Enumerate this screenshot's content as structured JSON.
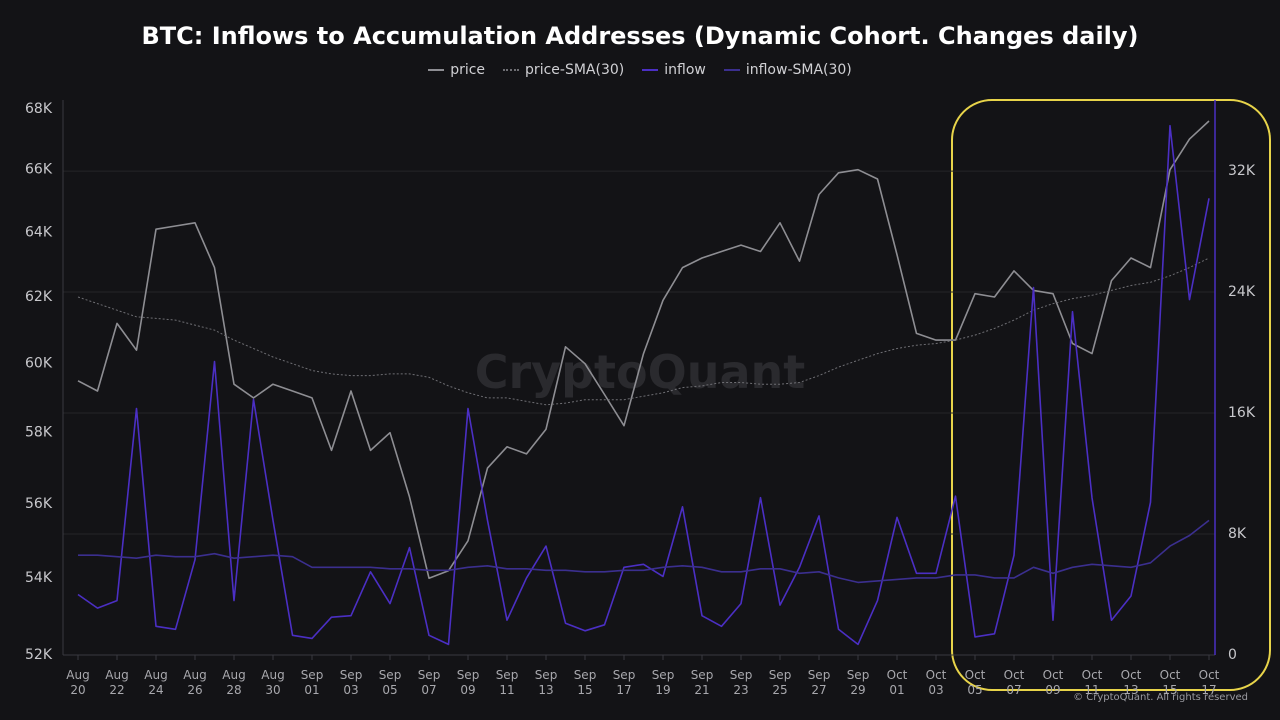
{
  "chart_data": {
    "type": "line",
    "title": "BTC: Inflows to Accumulation Addresses (Dynamic Cohort. Changes daily)",
    "watermark": "CryptoQuant",
    "copyright": "© CryptoQuant. All rights reserved",
    "categories": [
      "Aug 20",
      null,
      "Aug 22",
      null,
      "Aug 24",
      null,
      "Aug 26",
      null,
      "Aug 28",
      null,
      "Aug 30",
      null,
      "Sep 01",
      null,
      "Sep 03",
      null,
      "Sep 05",
      null,
      "Sep 07",
      null,
      "Sep 09",
      null,
      "Sep 11",
      null,
      "Sep 13",
      null,
      "Sep 15",
      null,
      "Sep 17",
      null,
      "Sep 19",
      null,
      "Sep 21",
      null,
      "Sep 23",
      null,
      "Sep 25",
      null,
      "Sep 27",
      null,
      "Sep 29",
      null,
      "Oct 01",
      null,
      "Oct 03",
      null,
      "Oct 05",
      null,
      "Oct 07",
      null,
      "Oct 09",
      null,
      "Oct 11",
      null,
      "Oct 13",
      null,
      "Oct 15",
      null,
      "Oct 17"
    ],
    "yscale": "log",
    "ylim": [
      52000,
      68300
    ],
    "yticks": [
      {
        "value": 52000,
        "label": "52K"
      },
      {
        "value": 54000,
        "label": "54K"
      },
      {
        "value": 56000,
        "label": "56K"
      },
      {
        "value": 58000,
        "label": "58K"
      },
      {
        "value": 60000,
        "label": "60K"
      },
      {
        "value": 62000,
        "label": "62K"
      },
      {
        "value": 64000,
        "label": "64K"
      },
      {
        "value": 66000,
        "label": "66K"
      },
      {
        "value": 68000,
        "label": "68K"
      }
    ],
    "y2lim": [
      0,
      36700
    ],
    "y2ticks": [
      0,
      {
        "value": 8000,
        "label": "8K"
      },
      {
        "value": 16000,
        "label": "16K"
      },
      {
        "value": 24000,
        "label": "24K"
      },
      {
        "value": 32000,
        "label": "32K"
      }
    ],
    "grid": "y2",
    "series": [
      {
        "name": "price",
        "color": "#8e8e93",
        "style": "solid",
        "axis": "y",
        "values": [
          59500,
          59200,
          61200,
          60400,
          64100,
          64200,
          64300,
          62900,
          59400,
          59000,
          59400,
          59200,
          59000,
          57500,
          59200,
          57500,
          58000,
          56200,
          54000,
          54200,
          55000,
          57000,
          57600,
          57400,
          58100,
          60500,
          60000,
          59100,
          58200,
          60300,
          61900,
          62900,
          63200,
          63400,
          63600,
          63400,
          64300,
          63100,
          65200,
          65900,
          66000,
          65700,
          63300,
          60900,
          60700,
          60700,
          62100,
          62000,
          62800,
          62200,
          62100,
          60600,
          60300,
          62500,
          63200,
          62900,
          66000,
          67000,
          67600
        ]
      },
      {
        "name": "price-SMA(30)",
        "color": "#6e6e73",
        "style": "dotted",
        "axis": "y",
        "values": [
          62000,
          61800,
          61600,
          61400,
          61350,
          61300,
          61150,
          61000,
          60700,
          60450,
          60200,
          60000,
          59800,
          59700,
          59650,
          59650,
          59700,
          59700,
          59600,
          59350,
          59150,
          59000,
          59000,
          58900,
          58800,
          58850,
          58950,
          58950,
          58950,
          59050,
          59150,
          59300,
          59350,
          59450,
          59450,
          59400,
          59400,
          59450,
          59650,
          59900,
          60100,
          60300,
          60450,
          60550,
          60600,
          60700,
          60850,
          61050,
          61300,
          61600,
          61800,
          61950,
          62050,
          62200,
          62350,
          62450,
          62650,
          62900,
          63200
        ]
      },
      {
        "name": "inflow",
        "color": "#4b2fc4",
        "style": "solid",
        "axis": "y2",
        "values": [
          4000,
          3100,
          3600,
          16300,
          1900,
          1700,
          6300,
          19400,
          3600,
          16900,
          8900,
          1300,
          1100,
          2500,
          2600,
          5500,
          3400,
          7100,
          1300,
          700,
          16300,
          8900,
          2300,
          5100,
          7200,
          2100,
          1600,
          2000,
          5800,
          6000,
          5200,
          9800,
          2600,
          1900,
          3400,
          10400,
          3300,
          5800,
          9200,
          1700,
          700,
          3600,
          9100,
          5400,
          5400,
          10500,
          1200,
          1400,
          6600,
          24300,
          2300,
          22700,
          10400,
          2300,
          3900,
          10100,
          35000,
          23500,
          30200
        ]
      },
      {
        "name": "inflow-SMA(30)",
        "color": "#3b2f8f",
        "style": "solid",
        "axis": "y2",
        "values": [
          6600,
          6600,
          6500,
          6400,
          6600,
          6500,
          6500,
          6700,
          6400,
          6500,
          6600,
          6500,
          5800,
          5800,
          5800,
          5800,
          5700,
          5700,
          5600,
          5600,
          5800,
          5900,
          5700,
          5700,
          5600,
          5600,
          5500,
          5500,
          5600,
          5600,
          5800,
          5900,
          5800,
          5500,
          5500,
          5700,
          5700,
          5400,
          5500,
          5100,
          4800,
          4900,
          5000,
          5100,
          5100,
          5300,
          5300,
          5100,
          5100,
          5800,
          5400,
          5800,
          6000,
          5900,
          5800,
          6100,
          7200,
          7900,
          8900
        ]
      }
    ]
  }
}
